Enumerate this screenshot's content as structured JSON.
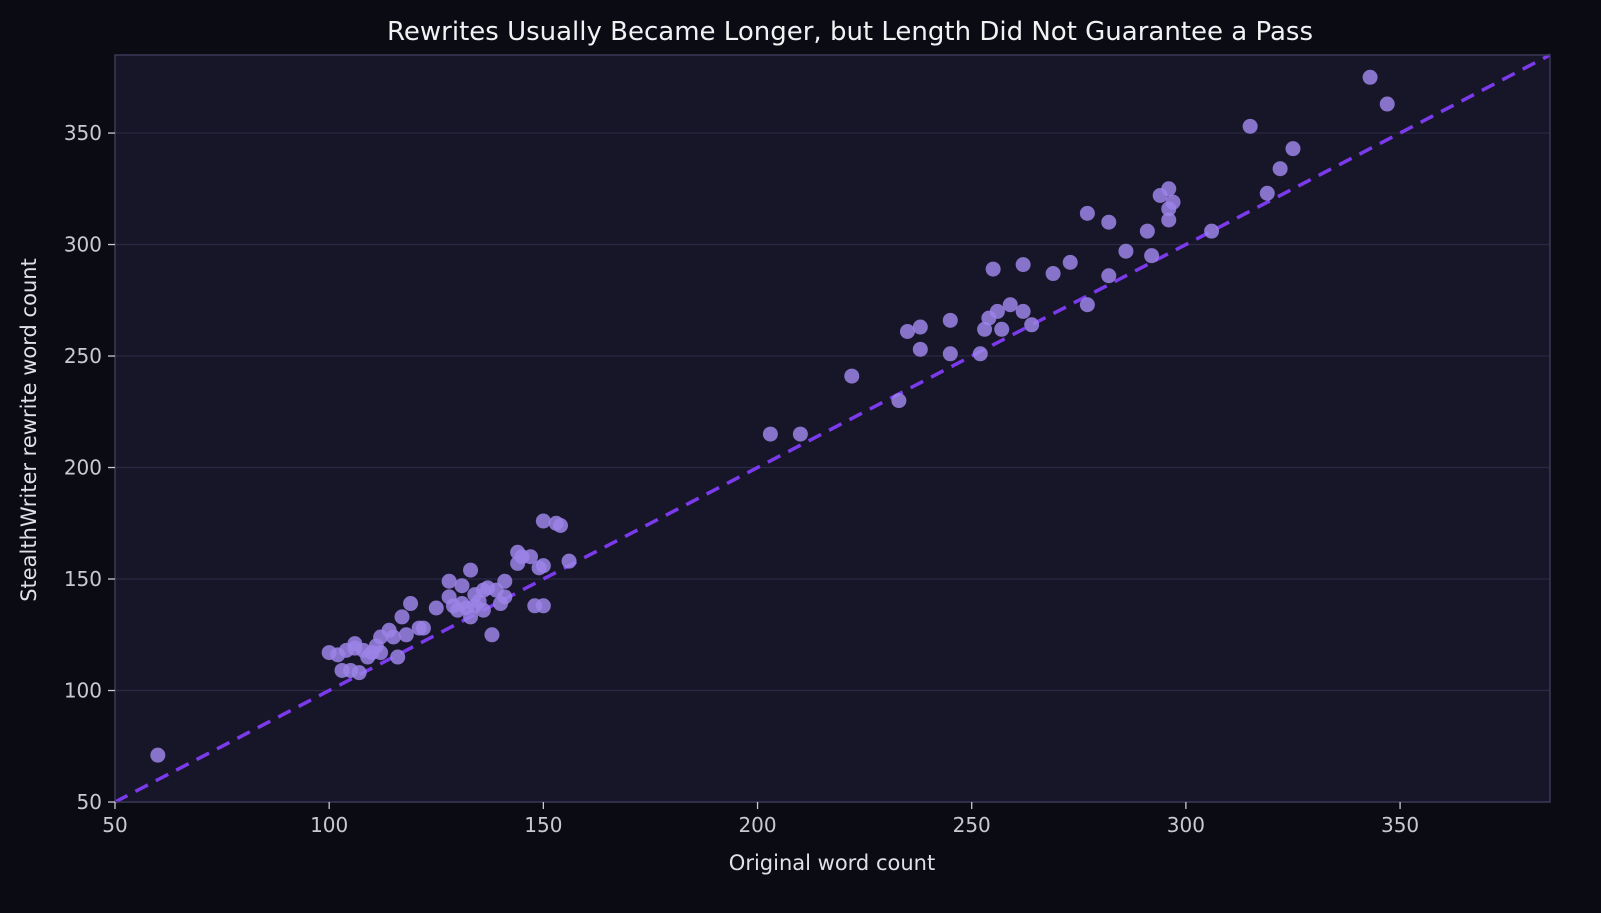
{
  "colors": {
    "background": "#0b0c13",
    "plot_background": "#171628",
    "plot_border": "#3a3858",
    "grid": "#2a2843",
    "marker": "#9b84e6",
    "reference_line": "#7c3aed",
    "text": "#e0e0e6"
  },
  "chart_data": {
    "type": "scatter",
    "title": "Rewrites Usually Became Longer, but Length Did Not Guarantee a Pass",
    "xlabel": "Original word count",
    "ylabel": "StealthWriter rewrite word count",
    "xlim": [
      50,
      385
    ],
    "ylim": [
      50,
      385
    ],
    "xticks": [
      50,
      100,
      150,
      200,
      250,
      300,
      350
    ],
    "yticks": [
      50,
      100,
      150,
      200,
      250,
      300,
      350
    ],
    "grid": "horizontal",
    "reference_line": {
      "label": "y = x",
      "style": "dashed",
      "from": [
        50,
        50
      ],
      "to": [
        385,
        385
      ]
    },
    "points": [
      [
        60,
        71
      ],
      [
        100,
        117
      ],
      [
        102,
        116
      ],
      [
        103,
        109
      ],
      [
        104,
        118
      ],
      [
        105,
        109
      ],
      [
        106,
        121
      ],
      [
        106,
        119
      ],
      [
        107,
        108
      ],
      [
        108,
        118
      ],
      [
        109,
        115
      ],
      [
        110,
        117
      ],
      [
        111,
        120
      ],
      [
        112,
        124
      ],
      [
        112,
        117
      ],
      [
        114,
        127
      ],
      [
        115,
        124
      ],
      [
        116,
        115
      ],
      [
        117,
        133
      ],
      [
        118,
        125
      ],
      [
        119,
        139
      ],
      [
        121,
        128
      ],
      [
        122,
        128
      ],
      [
        125,
        137
      ],
      [
        128,
        149
      ],
      [
        128,
        142
      ],
      [
        129,
        138
      ],
      [
        130,
        136
      ],
      [
        131,
        147
      ],
      [
        131,
        139
      ],
      [
        132,
        137
      ],
      [
        133,
        154
      ],
      [
        133,
        133
      ],
      [
        134,
        143
      ],
      [
        134,
        138
      ],
      [
        135,
        140
      ],
      [
        136,
        145
      ],
      [
        136,
        136
      ],
      [
        137,
        146
      ],
      [
        138,
        125
      ],
      [
        139,
        145
      ],
      [
        140,
        139
      ],
      [
        141,
        149
      ],
      [
        141,
        142
      ],
      [
        144,
        162
      ],
      [
        144,
        157
      ],
      [
        145,
        160
      ],
      [
        147,
        160
      ],
      [
        148,
        138
      ],
      [
        149,
        155
      ],
      [
        150,
        176
      ],
      [
        150,
        156
      ],
      [
        150,
        138
      ],
      [
        153,
        175
      ],
      [
        154,
        174
      ],
      [
        156,
        158
      ],
      [
        203,
        215
      ],
      [
        210,
        215
      ],
      [
        222,
        241
      ],
      [
        233,
        230
      ],
      [
        235,
        261
      ],
      [
        238,
        263
      ],
      [
        238,
        253
      ],
      [
        245,
        266
      ],
      [
        245,
        251
      ],
      [
        252,
        251
      ],
      [
        253,
        262
      ],
      [
        254,
        267
      ],
      [
        255,
        289
      ],
      [
        256,
        270
      ],
      [
        257,
        262
      ],
      [
        259,
        273
      ],
      [
        262,
        291
      ],
      [
        262,
        270
      ],
      [
        264,
        264
      ],
      [
        269,
        287
      ],
      [
        273,
        292
      ],
      [
        277,
        314
      ],
      [
        277,
        273
      ],
      [
        282,
        310
      ],
      [
        282,
        286
      ],
      [
        286,
        297
      ],
      [
        291,
        306
      ],
      [
        292,
        295
      ],
      [
        294,
        322
      ],
      [
        296,
        325
      ],
      [
        296,
        316
      ],
      [
        296,
        311
      ],
      [
        297,
        319
      ],
      [
        306,
        306
      ],
      [
        315,
        353
      ],
      [
        319,
        323
      ],
      [
        322,
        334
      ],
      [
        325,
        343
      ],
      [
        343,
        375
      ],
      [
        347,
        363
      ]
    ]
  }
}
